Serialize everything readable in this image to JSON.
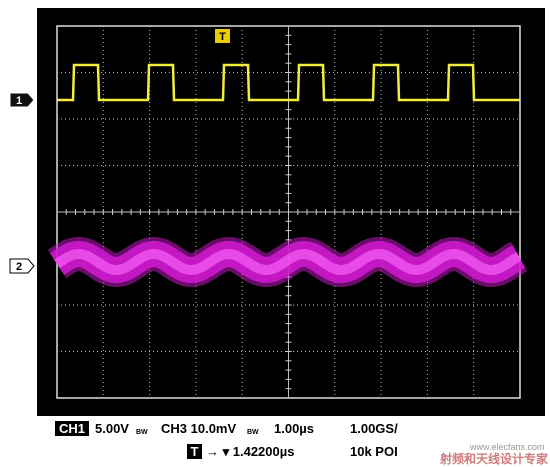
{
  "trigger_marker": "T",
  "channel_markers": [
    "1",
    "2"
  ],
  "status": {
    "row1": {
      "ch_badge": "CH1",
      "ch1_scale": "5.00V",
      "ch1_bw": "BW",
      "ch3_scale": "CH3 10.0mV",
      "ch3_bw": "BW",
      "timebase": "1.00µs",
      "sample_rate": "1.00GS/"
    },
    "row2": {
      "trigger_badge": "T",
      "trigger_position": "→ ▾ 1.42200µs",
      "record_length": "10k POI"
    }
  },
  "watermark": {
    "site": "www.elecfans.com",
    "slogan": "射频和天线设计专家"
  }
}
